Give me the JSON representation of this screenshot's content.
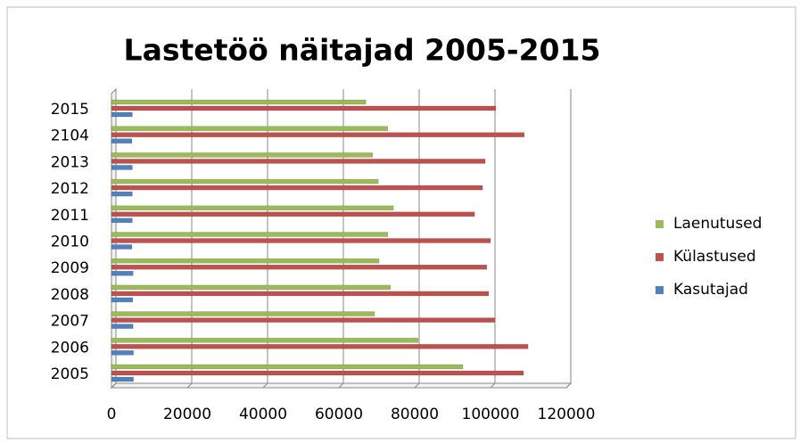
{
  "chart_data": {
    "type": "bar",
    "orientation": "horizontal",
    "title": "Lastetöö näitajad 2005-2015",
    "categories": [
      "2005",
      "2006",
      "2007",
      "2008",
      "2009",
      "2010",
      "2011",
      "2012",
      "2013",
      "2104",
      "2015"
    ],
    "series": [
      {
        "name": "Laenutused",
        "color": "#9bbb59",
        "values": [
          92700,
          80900,
          69400,
          73600,
          70600,
          72900,
          74400,
          70400,
          68900,
          72900,
          67100
        ]
      },
      {
        "name": "Külastused",
        "color": "#c0504d",
        "values": [
          108700,
          109900,
          101200,
          99500,
          99000,
          100000,
          95800,
          97900,
          98600,
          108900,
          101400
        ]
      },
      {
        "name": "Kasutajad",
        "color": "#4f81bd",
        "values": [
          5800,
          5800,
          5700,
          5600,
          5700,
          5400,
          5500,
          5500,
          5500,
          5400,
          5500
        ]
      }
    ],
    "xlim": [
      0,
      120000
    ],
    "xticks": [
      0,
      20000,
      40000,
      60000,
      80000,
      100000,
      120000
    ],
    "grid": true,
    "legend": "right"
  }
}
